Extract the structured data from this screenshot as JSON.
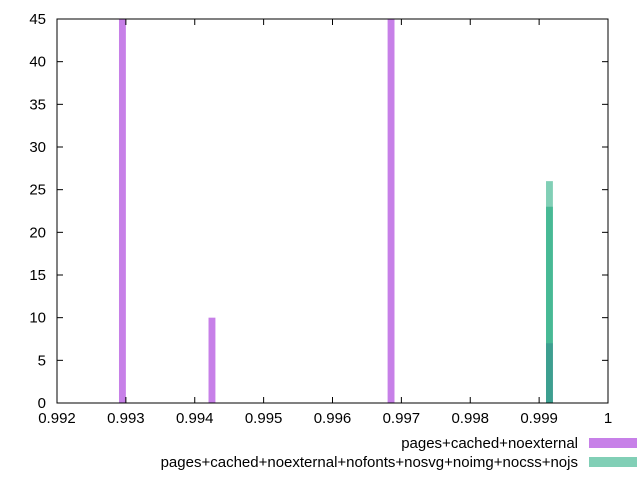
{
  "chart_data": {
    "type": "bar",
    "title": "",
    "xlabel": "",
    "ylabel": "",
    "xlim": [
      0.992,
      1.0
    ],
    "ylim": [
      0,
      45
    ],
    "x_ticks": [
      "0.992",
      "0.993",
      "0.994",
      "0.995",
      "0.996",
      "0.997",
      "0.998",
      "0.999",
      "1"
    ],
    "y_ticks": [
      "0",
      "5",
      "10",
      "15",
      "20",
      "25",
      "30",
      "35",
      "40",
      "45"
    ],
    "grid": false,
    "legend_position": "bottom-right",
    "bin_width": 0.0001,
    "series": [
      {
        "name": "pages+cached+noexternal",
        "color": "#b455e0",
        "opacity": 0.75,
        "points": [
          {
            "x": 0.99295,
            "y": 45
          },
          {
            "x": 0.99425,
            "y": 10
          },
          {
            "x": 0.99685,
            "y": 45
          },
          {
            "x": 0.99915,
            "y": 7
          }
        ]
      },
      {
        "name": "pages+cached+noexternal+nofonts+nosvg+noimg+nocss+nojs",
        "color": "#1aa87a",
        "opacity": 0.55,
        "points": [
          {
            "x": 0.99915,
            "y": 26
          },
          {
            "x": 0.99915,
            "y": 23
          }
        ]
      }
    ]
  }
}
